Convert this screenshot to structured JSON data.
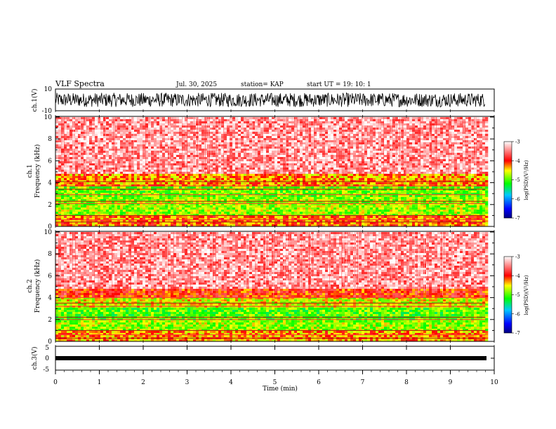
{
  "header": {
    "title": "VLF Spectra",
    "date": "Jul. 30, 2025",
    "station": "station= KAP",
    "start": "start  UT =   19: 10: 1"
  },
  "chart_data": [
    {
      "type": "line",
      "name": "ch1-waveform",
      "ylabel": "ch.1(V)",
      "ylim": [
        -10,
        10
      ],
      "yticks": [
        "10",
        "-10"
      ],
      "x_range_min": [
        0,
        9.8
      ],
      "description_values": "dense oscillating waveform between about -6 and 7 V"
    },
    {
      "type": "heatmap",
      "name": "ch1-spectrogram",
      "ylabel": "ch.1\nFrequency (kHz)",
      "ylabel_line1": "ch.1",
      "ylabel_line2": "Frequency (kHz)",
      "ylim": [
        0,
        10
      ],
      "yticks": [
        "0",
        "2",
        "4",
        "6",
        "8",
        "10"
      ],
      "xlim": [
        0,
        10
      ],
      "data_x_max": 9.8,
      "bands": [
        {
          "from": 0.0,
          "to": 1.0,
          "level": -4.2
        },
        {
          "from": 1.0,
          "to": 2.8,
          "level": -4.8
        },
        {
          "from": 2.8,
          "to": 3.8,
          "level": -4.9
        },
        {
          "from": 3.8,
          "to": 5.0,
          "level": -4.3
        },
        {
          "from": 5.0,
          "to": 10.0,
          "level": -3.4
        }
      ],
      "lines_khz": [
        0.4,
        0.6,
        1.0,
        2.1,
        2.3,
        2.9,
        3.4,
        3.7,
        4.1
      ],
      "colorbar": {
        "label": "log(PSD)(V²/Hz)",
        "ticks": [
          "-3",
          "-4",
          "-5",
          "-6",
          "-7"
        ],
        "range": [
          -7,
          -3
        ]
      }
    },
    {
      "type": "heatmap",
      "name": "ch2-spectrogram",
      "ylabel": "ch.2\nFrequency (kHz)",
      "ylabel_line1": "ch.2",
      "ylabel_line2": "Frequency (kHz)",
      "ylim": [
        0,
        10
      ],
      "yticks": [
        "0",
        "2",
        "4",
        "6",
        "8",
        "10"
      ],
      "xlim": [
        0,
        10
      ],
      "data_x_max": 9.8,
      "bands": [
        {
          "from": 0.0,
          "to": 1.0,
          "level": -4.3
        },
        {
          "from": 1.0,
          "to": 2.0,
          "level": -4.8
        },
        {
          "from": 2.0,
          "to": 3.2,
          "level": -5.0
        },
        {
          "from": 3.2,
          "to": 4.1,
          "level": -4.6
        },
        {
          "from": 4.1,
          "to": 5.0,
          "level": -4.0
        },
        {
          "from": 5.0,
          "to": 10.0,
          "level": -3.4
        }
      ],
      "lines_khz": [
        0.3,
        0.6,
        1.0,
        2.0,
        2.2,
        3.2,
        3.5,
        4.0
      ],
      "colorbar": {
        "label": "log(PSD)(V²/Hz)",
        "ticks": [
          "-3",
          "-4",
          "-5",
          "-6",
          "-7"
        ],
        "range": [
          -7,
          -3
        ]
      }
    },
    {
      "type": "line",
      "name": "ch3-waveform",
      "ylabel": "ch.3(V)",
      "ylim": [
        -5,
        5
      ],
      "yticks": [
        "5",
        "0",
        "-5"
      ],
      "values_range": [
        -0.7,
        0.3
      ],
      "xlabel": "Time (min)",
      "xticks": [
        "0",
        "1",
        "2",
        "3",
        "4",
        "5",
        "6",
        "7",
        "8",
        "9",
        "10"
      ],
      "xlim": [
        0,
        10
      ]
    }
  ],
  "colors": {
    "accent": "#ff0000",
    "line": "#000000"
  }
}
